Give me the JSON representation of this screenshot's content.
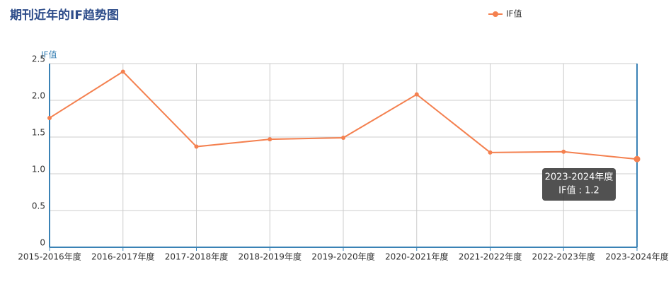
{
  "chart_data": {
    "type": "line",
    "title": "期刊近年的IF趋势图",
    "y_label": "IF值",
    "categories": [
      "2015-2016年度",
      "2016-2017年度",
      "2017-2018年度",
      "2018-2019年度",
      "2019-2020年度",
      "2020-2021年度",
      "2021-2022年度",
      "2022-2023年度",
      "2023-2024年度"
    ],
    "series": [
      {
        "name": "IF值",
        "color": "#f4804f",
        "values": [
          1.76,
          2.39,
          1.37,
          1.47,
          1.49,
          2.08,
          1.29,
          1.3,
          1.2
        ]
      }
    ],
    "ylim": [
      0,
      2.5
    ],
    "yticks": [
      0,
      0.5,
      {
        "value": 1,
        "label": "1.0"
      },
      1.5,
      {
        "value": 2,
        "label": "2.0"
      },
      2.5
    ],
    "grid": true,
    "legend": "top-right",
    "tooltip": {
      "title": "2023-2024年度",
      "text": "IF值 : 1.2"
    }
  }
}
